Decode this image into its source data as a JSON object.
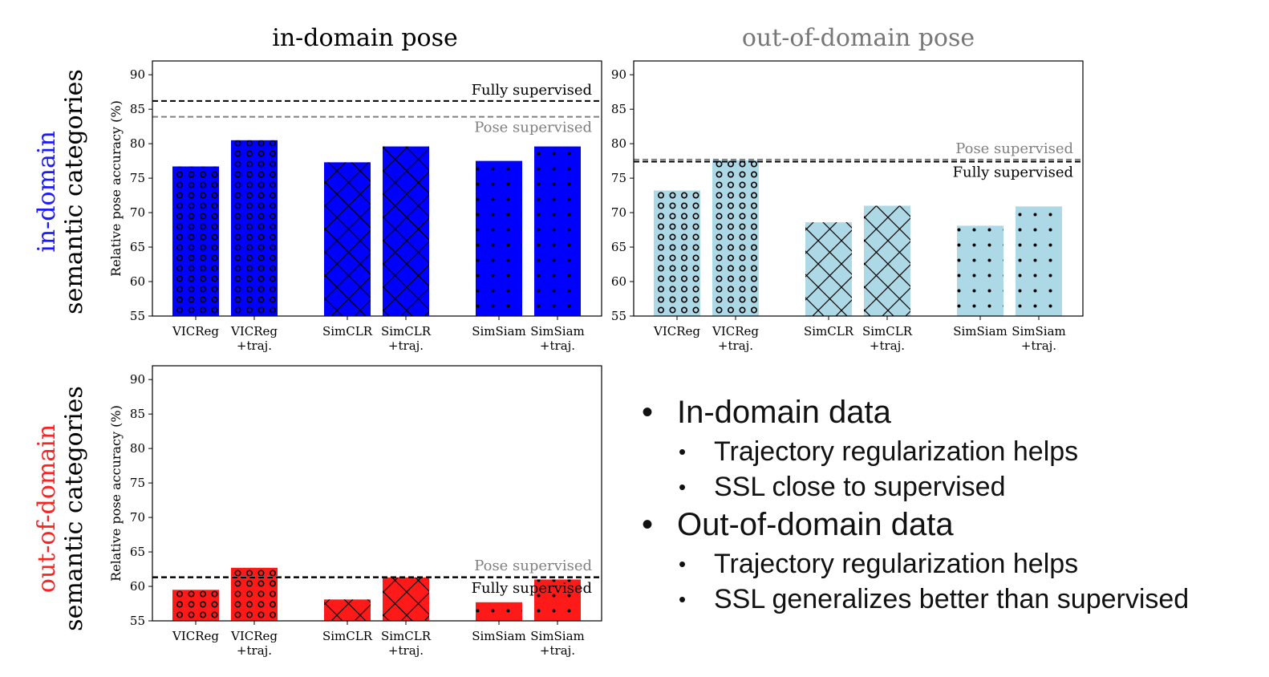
{
  "columns": {
    "in_domain_pose": "in-domain pose",
    "out_of_domain_pose": "out-of-domain pose",
    "colors": {
      "in": "#000000",
      "out": "#777777"
    }
  },
  "rows": {
    "in_domain": {
      "line1": "in-domain",
      "line2": "semantic categories"
    },
    "out_of_domain": {
      "line1": "out-of-domain",
      "line2": "semantic categories"
    },
    "colors": {
      "in": "#1a1aff",
      "out": "#ff2020"
    }
  },
  "chart_data": [
    {
      "id": "chart-tl",
      "type": "bar",
      "categories": [
        [
          "VICReg"
        ],
        [
          "VICReg",
          "+traj."
        ],
        [
          "SimCLR"
        ],
        [
          "SimCLR",
          "+traj."
        ],
        [
          "SimSiam"
        ],
        [
          "SimSiam",
          "+traj."
        ]
      ],
      "groups": [
        0,
        0,
        1,
        1,
        2,
        2
      ],
      "patterns": [
        "circles",
        "circles",
        "cross",
        "cross",
        "dots",
        "dots"
      ],
      "values": [
        76.7,
        80.5,
        77.3,
        79.6,
        77.5,
        79.6
      ],
      "color": "#0000ff",
      "ylim": [
        55,
        92
      ],
      "yticks": [
        55,
        60,
        65,
        70,
        75,
        80,
        85,
        90
      ],
      "ylabel": "Relative pose accuracy (%)",
      "refs": [
        {
          "label": "Fully supervised",
          "value": 86.2,
          "color": "#000000",
          "text_pos": "above"
        },
        {
          "label": "Pose supervised",
          "value": 83.9,
          "color": "#808080",
          "text_pos": "below"
        }
      ]
    },
    {
      "id": "chart-tr",
      "type": "bar",
      "categories": [
        [
          "VICReg"
        ],
        [
          "VICReg",
          "+traj."
        ],
        [
          "SimCLR"
        ],
        [
          "SimCLR",
          "+traj."
        ],
        [
          "SimSiam"
        ],
        [
          "SimSiam",
          "+traj."
        ]
      ],
      "groups": [
        0,
        0,
        1,
        1,
        2,
        2
      ],
      "patterns": [
        "circles",
        "circles",
        "cross",
        "cross",
        "dots",
        "dots"
      ],
      "values": [
        73.2,
        77.6,
        68.6,
        71.0,
        68.1,
        70.9
      ],
      "color": "#add8e6",
      "ylim": [
        55,
        92
      ],
      "yticks": [
        55,
        60,
        65,
        70,
        75,
        80,
        85,
        90
      ],
      "ylabel": "",
      "refs": [
        {
          "label": "Pose supervised",
          "value": 77.7,
          "color": "#808080",
          "text_pos": "above"
        },
        {
          "label": "Fully supervised",
          "value": 77.4,
          "color": "#000000",
          "text_pos": "below"
        }
      ]
    },
    {
      "id": "chart-bl",
      "type": "bar",
      "categories": [
        [
          "VICReg"
        ],
        [
          "VICReg",
          "+traj."
        ],
        [
          "SimCLR"
        ],
        [
          "SimCLR",
          "+traj."
        ],
        [
          "SimSiam"
        ],
        [
          "SimSiam",
          "+traj."
        ]
      ],
      "groups": [
        0,
        0,
        1,
        1,
        2,
        2
      ],
      "patterns": [
        "circles",
        "circles",
        "cross",
        "cross",
        "dots",
        "dots"
      ],
      "values": [
        59.5,
        62.7,
        58.1,
        61.3,
        57.7,
        61.0
      ],
      "color": "#ff1a1a",
      "ylim": [
        55,
        92
      ],
      "yticks": [
        55,
        60,
        65,
        70,
        75,
        80,
        85,
        90
      ],
      "ylabel": "Relative pose accuracy (%)",
      "refs": [
        {
          "label": "Pose supervised",
          "value": 61.4,
          "color": "#808080",
          "text_pos": "above"
        },
        {
          "label": "Fully supervised",
          "value": 61.3,
          "color": "#000000",
          "text_pos": "below"
        }
      ]
    }
  ],
  "bullets": {
    "in_domain": {
      "title": "In-domain data",
      "items": [
        "Trajectory regularization helps",
        "SSL close to supervised"
      ]
    },
    "out_of_domain": {
      "title": "Out-of-domain data",
      "items": [
        "Trajectory regularization helps",
        "SSL generalizes better than supervised"
      ]
    }
  }
}
